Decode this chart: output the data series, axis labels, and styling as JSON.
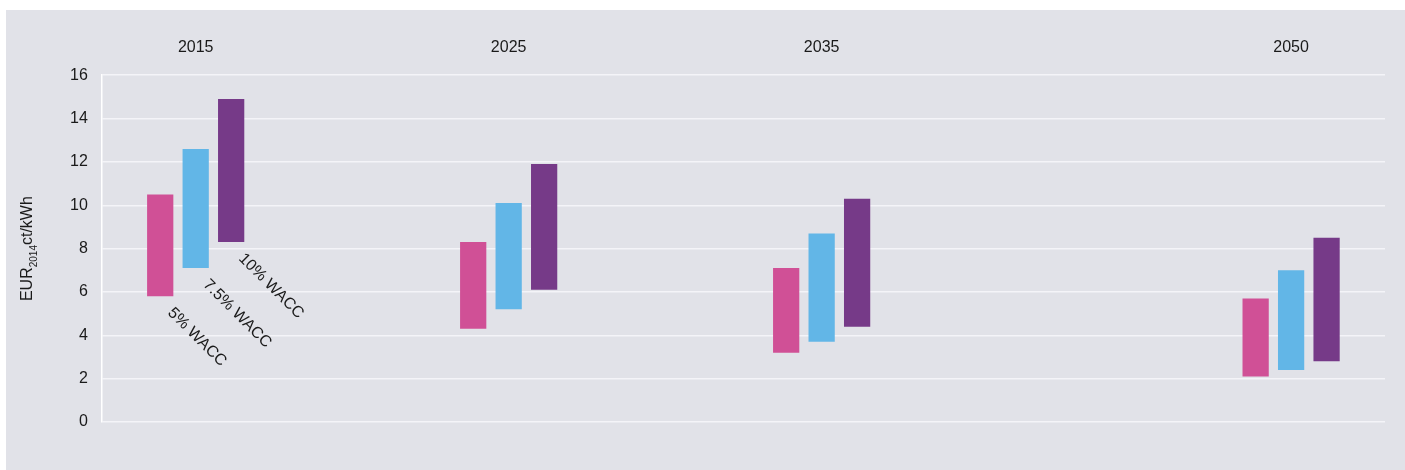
{
  "chart_data": {
    "type": "bar",
    "ylabel": "EUR$_{2014}$ct/kWh",
    "x": [
      2015,
      2025,
      2035,
      2050
    ],
    "xlim": [
      2012,
      2053
    ],
    "xticks": [
      2015,
      2025,
      2035,
      2050
    ],
    "ylim": [
      0,
      16
    ],
    "yticks": [
      0,
      2,
      4,
      6,
      8,
      10,
      12,
      14,
      16
    ],
    "grid": "y",
    "legend": false,
    "series": [
      {
        "name": "5% WACC",
        "color": "#d05096",
        "base": [
          5.8,
          4.3,
          3.2,
          2.1
        ],
        "values": [
          4.7,
          4.0,
          3.9,
          3.6
        ]
      },
      {
        "name": "7.5% WACC",
        "color": "#62b6e7",
        "base": [
          7.1,
          5.2,
          3.7,
          2.4
        ],
        "values": [
          5.5,
          4.9,
          5.0,
          4.6
        ]
      },
      {
        "name": "10% WACC",
        "color": "#763a88",
        "base": [
          8.3,
          6.1,
          4.4,
          2.8
        ],
        "values": [
          6.6,
          5.8,
          5.9,
          5.7
        ]
      }
    ]
  }
}
